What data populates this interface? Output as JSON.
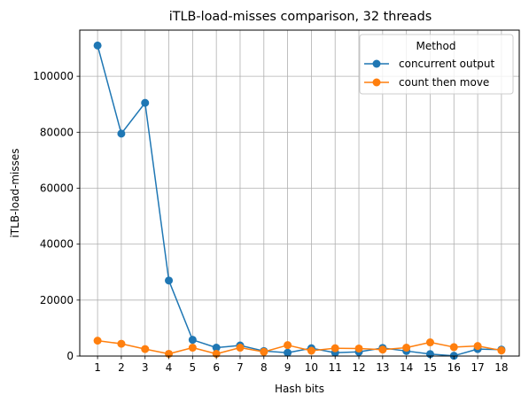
{
  "chart_data": {
    "type": "line",
    "title": "iTLB-load-misses comparison, 32 threads",
    "xlabel": "Hash bits",
    "ylabel": "iTLB-load-misses",
    "x": [
      1,
      2,
      3,
      4,
      5,
      6,
      7,
      8,
      9,
      10,
      11,
      12,
      13,
      14,
      15,
      16,
      17,
      18
    ],
    "xlim": [
      0.25,
      18.75
    ],
    "ylim": [
      0,
      116500
    ],
    "yticks": [
      0,
      20000,
      40000,
      60000,
      80000,
      100000
    ],
    "grid": true,
    "legend": {
      "title": "Method",
      "placement": "top-right"
    },
    "series": [
      {
        "name": "concurrent output",
        "color": "#1f77b4",
        "values": [
          111000,
          79500,
          90500,
          27000,
          5800,
          3000,
          3800,
          1800,
          1200,
          2800,
          1200,
          1500,
          2900,
          1800,
          700,
          100,
          2500,
          2300
        ]
      },
      {
        "name": "count then move",
        "color": "#ff7f0e",
        "values": [
          5500,
          4400,
          2500,
          800,
          3000,
          800,
          3000,
          1500,
          3900,
          1900,
          2800,
          2700,
          2300,
          3000,
          4900,
          3200,
          3600,
          2000
        ]
      }
    ]
  }
}
